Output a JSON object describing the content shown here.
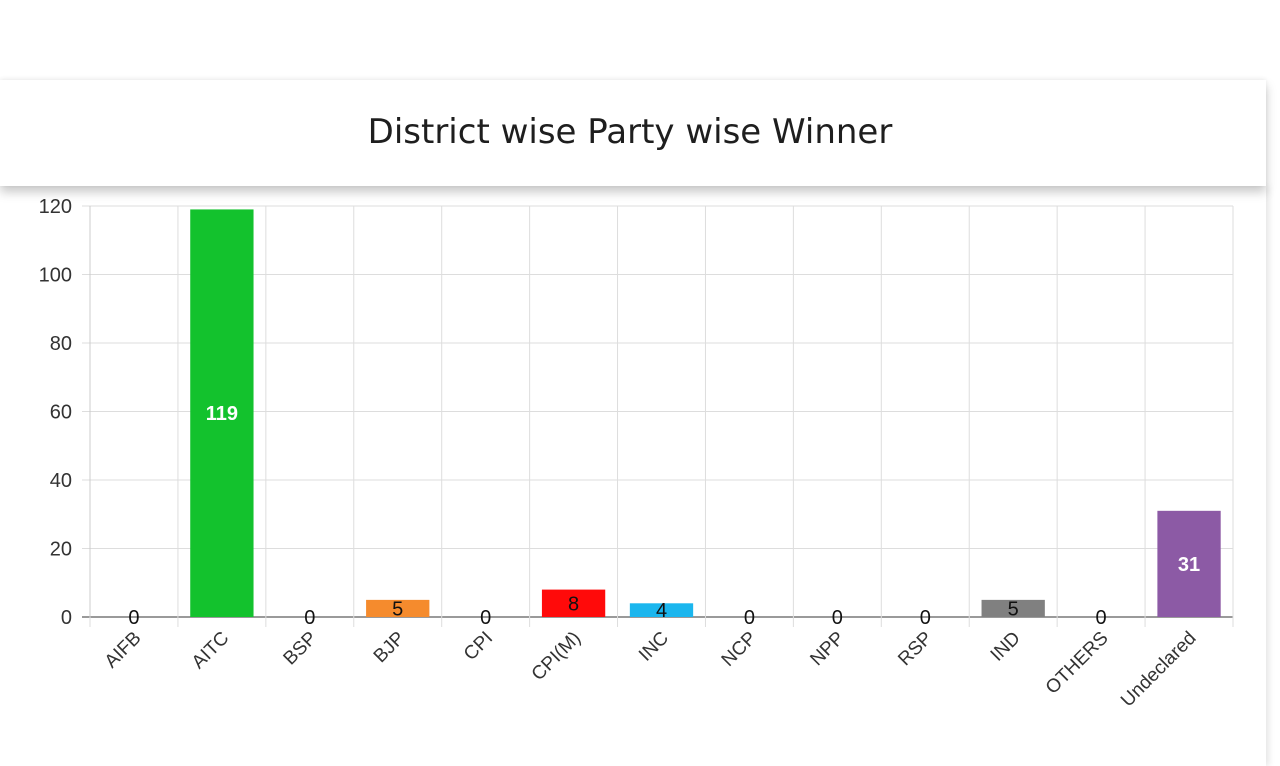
{
  "header": {
    "title": "District wise Party wise Winner"
  },
  "chart_data": {
    "type": "bar",
    "title": "District wise Party wise Winner",
    "xlabel": "",
    "ylabel": "",
    "ylim": [
      0,
      120
    ],
    "yticks": [
      0,
      20,
      40,
      60,
      80,
      100,
      120
    ],
    "grid": true,
    "legend": "none",
    "categories": [
      "AIFB",
      "AITC",
      "BSP",
      "BJP",
      "CPI",
      "CPI(M)",
      "INC",
      "NCP",
      "NPP",
      "RSP",
      "IND",
      "OTHERS",
      "Undeclared"
    ],
    "values": [
      0,
      119,
      0,
      5,
      0,
      8,
      4,
      0,
      0,
      0,
      5,
      0,
      31
    ],
    "data_labels": [
      "0",
      "119",
      "0",
      "5",
      "0",
      "8",
      "4",
      "0",
      "0",
      "0",
      "5",
      "0",
      "31"
    ],
    "colors": [
      "#999999",
      "#13c22d",
      "#999999",
      "#f58b2d",
      "#999999",
      "#ff0a0a",
      "#1bb6ee",
      "#999999",
      "#999999",
      "#999999",
      "#808080",
      "#999999",
      "#8c5aa5"
    ]
  }
}
